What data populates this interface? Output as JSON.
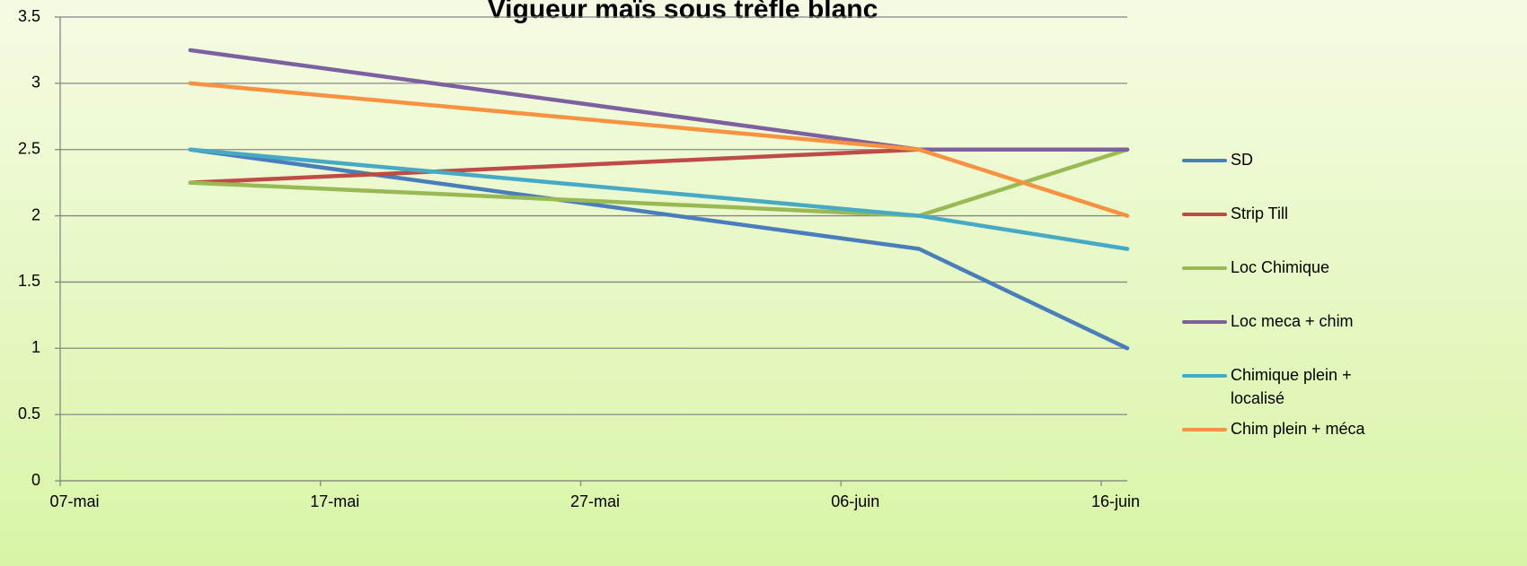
{
  "chart_data": {
    "type": "line",
    "title": "Vigueur maïs sous trèfle blanc",
    "x": [
      "05-12",
      "06-09",
      "06-17"
    ],
    "series": [
      {
        "name": "SD",
        "color": "#4a7ebb",
        "values": [
          2.5,
          1.75,
          1.0
        ]
      },
      {
        "name": "Strip Till",
        "color": "#be4b48",
        "values": [
          2.25,
          2.5,
          2.5
        ]
      },
      {
        "name": "Loc Chimique",
        "color": "#98b954",
        "values": [
          2.25,
          2.0,
          2.5
        ]
      },
      {
        "name": "Loc meca + chim",
        "color": "#7d60a0",
        "values": [
          3.25,
          2.5,
          2.5
        ]
      },
      {
        "name": "Chimique plein + localisé",
        "color": "#46aac5",
        "values": [
          2.5,
          2.0,
          1.75
        ]
      },
      {
        "name": "Chim plein + méca",
        "color": "#f69240",
        "values": [
          3.0,
          2.5,
          2.0
        ]
      }
    ],
    "xlim": [
      "05-07",
      "06-17"
    ],
    "xticks": [
      {
        "value": "05-07",
        "label": "07-mai"
      },
      {
        "value": "05-17",
        "label": "17-mai"
      },
      {
        "value": "05-27",
        "label": "27-mai"
      },
      {
        "value": "06-06",
        "label": "06-juin"
      },
      {
        "value": "06-16",
        "label": "16-juin"
      }
    ],
    "ylim": [
      0,
      3.5
    ],
    "yticks": [
      0,
      0.5,
      1,
      1.5,
      2,
      2.5,
      3,
      3.5
    ],
    "grid": true,
    "legend": "right"
  }
}
